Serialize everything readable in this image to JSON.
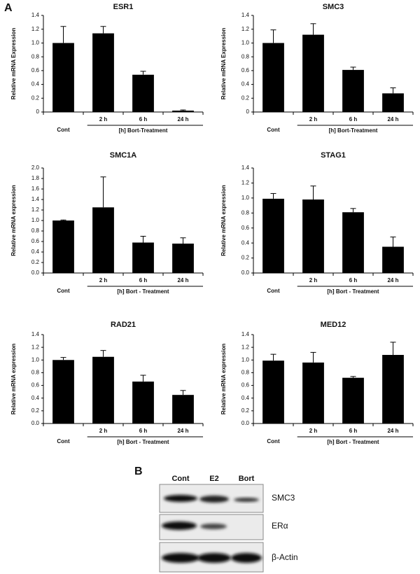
{
  "figure": {
    "panel_a": "A",
    "panel_b": "B"
  },
  "blot": {
    "lanes": [
      "Cont",
      "E2",
      "Bort"
    ],
    "proteins": [
      "SMC3",
      "ERα",
      "β-Actin"
    ]
  },
  "chart_data": [
    {
      "type": "bar",
      "title": "ESR1",
      "ylabel": "Relative mRNA Expression",
      "group_label": "[h] Bort-Treatment",
      "categories": [
        "Cont",
        "2 h",
        "6 h",
        "24 h"
      ],
      "values": [
        1.0,
        1.14,
        0.54,
        0.02
      ],
      "errors": [
        0.24,
        0.1,
        0.05,
        0.01
      ],
      "color": "#000000",
      "ylim": [
        0,
        1.4
      ],
      "yticks": [
        0,
        0.2,
        0.4,
        0.6,
        0.8,
        {
          "value": 1,
          "label": "1.0"
        },
        1.2,
        1.4
      ]
    },
    {
      "type": "bar",
      "title": "SMC3",
      "ylabel": "Relative mRNA Expression",
      "group_label": "[h] Bort-Treatment",
      "categories": [
        "Cont",
        "2 h",
        "6 h",
        "24 h"
      ],
      "values": [
        1.0,
        1.12,
        0.61,
        0.27
      ],
      "errors": [
        0.19,
        0.16,
        0.04,
        0.08
      ],
      "color": "#000000",
      "ylim": [
        0,
        1.4
      ],
      "yticks": [
        0,
        0.2,
        0.4,
        0.6,
        0.8,
        {
          "value": 1,
          "label": "1.0"
        },
        1.2,
        1.4
      ]
    },
    {
      "type": "bar",
      "title": "SMC1A",
      "ylabel": "Relative mRNA expression",
      "group_label": "[h] Bort - Treatment",
      "categories": [
        "Cont",
        "2 h",
        "6 h",
        "24 h"
      ],
      "values": [
        1.0,
        1.25,
        0.58,
        0.56
      ],
      "errors": [
        0.01,
        0.58,
        0.12,
        0.11
      ],
      "color": "#000000",
      "ylim": [
        0,
        2
      ],
      "yticks": [
        {
          "value": 0,
          "label": "0.0"
        },
        0.2,
        0.4,
        0.6,
        0.8,
        {
          "value": 1,
          "label": "1.0"
        },
        1.2,
        1.4,
        1.6,
        1.8,
        {
          "value": 2,
          "label": "2.0"
        }
      ]
    },
    {
      "type": "bar",
      "title": "STAG1",
      "ylabel": "Relative mRNA expression",
      "group_label": "[h] Bort -  Treatment",
      "categories": [
        "Cont",
        "2 h",
        "6 h",
        "24 h"
      ],
      "values": [
        0.99,
        0.98,
        0.81,
        0.35
      ],
      "errors": [
        0.07,
        0.18,
        0.05,
        0.13
      ],
      "color": "#000000",
      "ylim": [
        0,
        1.4
      ],
      "yticks": [
        {
          "value": 0,
          "label": "0.0"
        },
        0.2,
        0.4,
        0.6,
        0.8,
        {
          "value": 1,
          "label": "1.0"
        },
        1.2,
        1.4
      ]
    },
    {
      "type": "bar",
      "title": "RAD21",
      "ylabel": "Relative mRNA expression",
      "group_label": "[h]  Bort  -  Treatment",
      "categories": [
        "Cont",
        "2 h",
        "6 h",
        "24 h"
      ],
      "values": [
        1.0,
        1.05,
        0.66,
        0.45
      ],
      "errors": [
        0.04,
        0.1,
        0.1,
        0.07
      ],
      "color": "#000000",
      "ylim": [
        0,
        1.4
      ],
      "yticks": [
        {
          "value": 0,
          "label": "0.0"
        },
        0.2,
        0.4,
        0.6,
        0.8,
        {
          "value": 1,
          "label": "1.0"
        },
        1.2,
        1.4
      ]
    },
    {
      "type": "bar",
      "title": "MED12",
      "ylabel": "Relative mRNA expression",
      "group_label": "[h] Bort - Treatment",
      "categories": [
        "Cont",
        "2 h",
        "6 h",
        "24 h"
      ],
      "values": [
        0.99,
        0.96,
        0.72,
        1.08
      ],
      "errors": [
        0.1,
        0.16,
        0.02,
        0.2
      ],
      "color": "#000000",
      "ylim": [
        0,
        1.4
      ],
      "yticks": [
        {
          "value": 0,
          "label": "0.0"
        },
        0.2,
        0.4,
        0.6,
        0.8,
        {
          "value": 1,
          "label": "1.0"
        },
        1.2,
        1.4
      ]
    }
  ]
}
